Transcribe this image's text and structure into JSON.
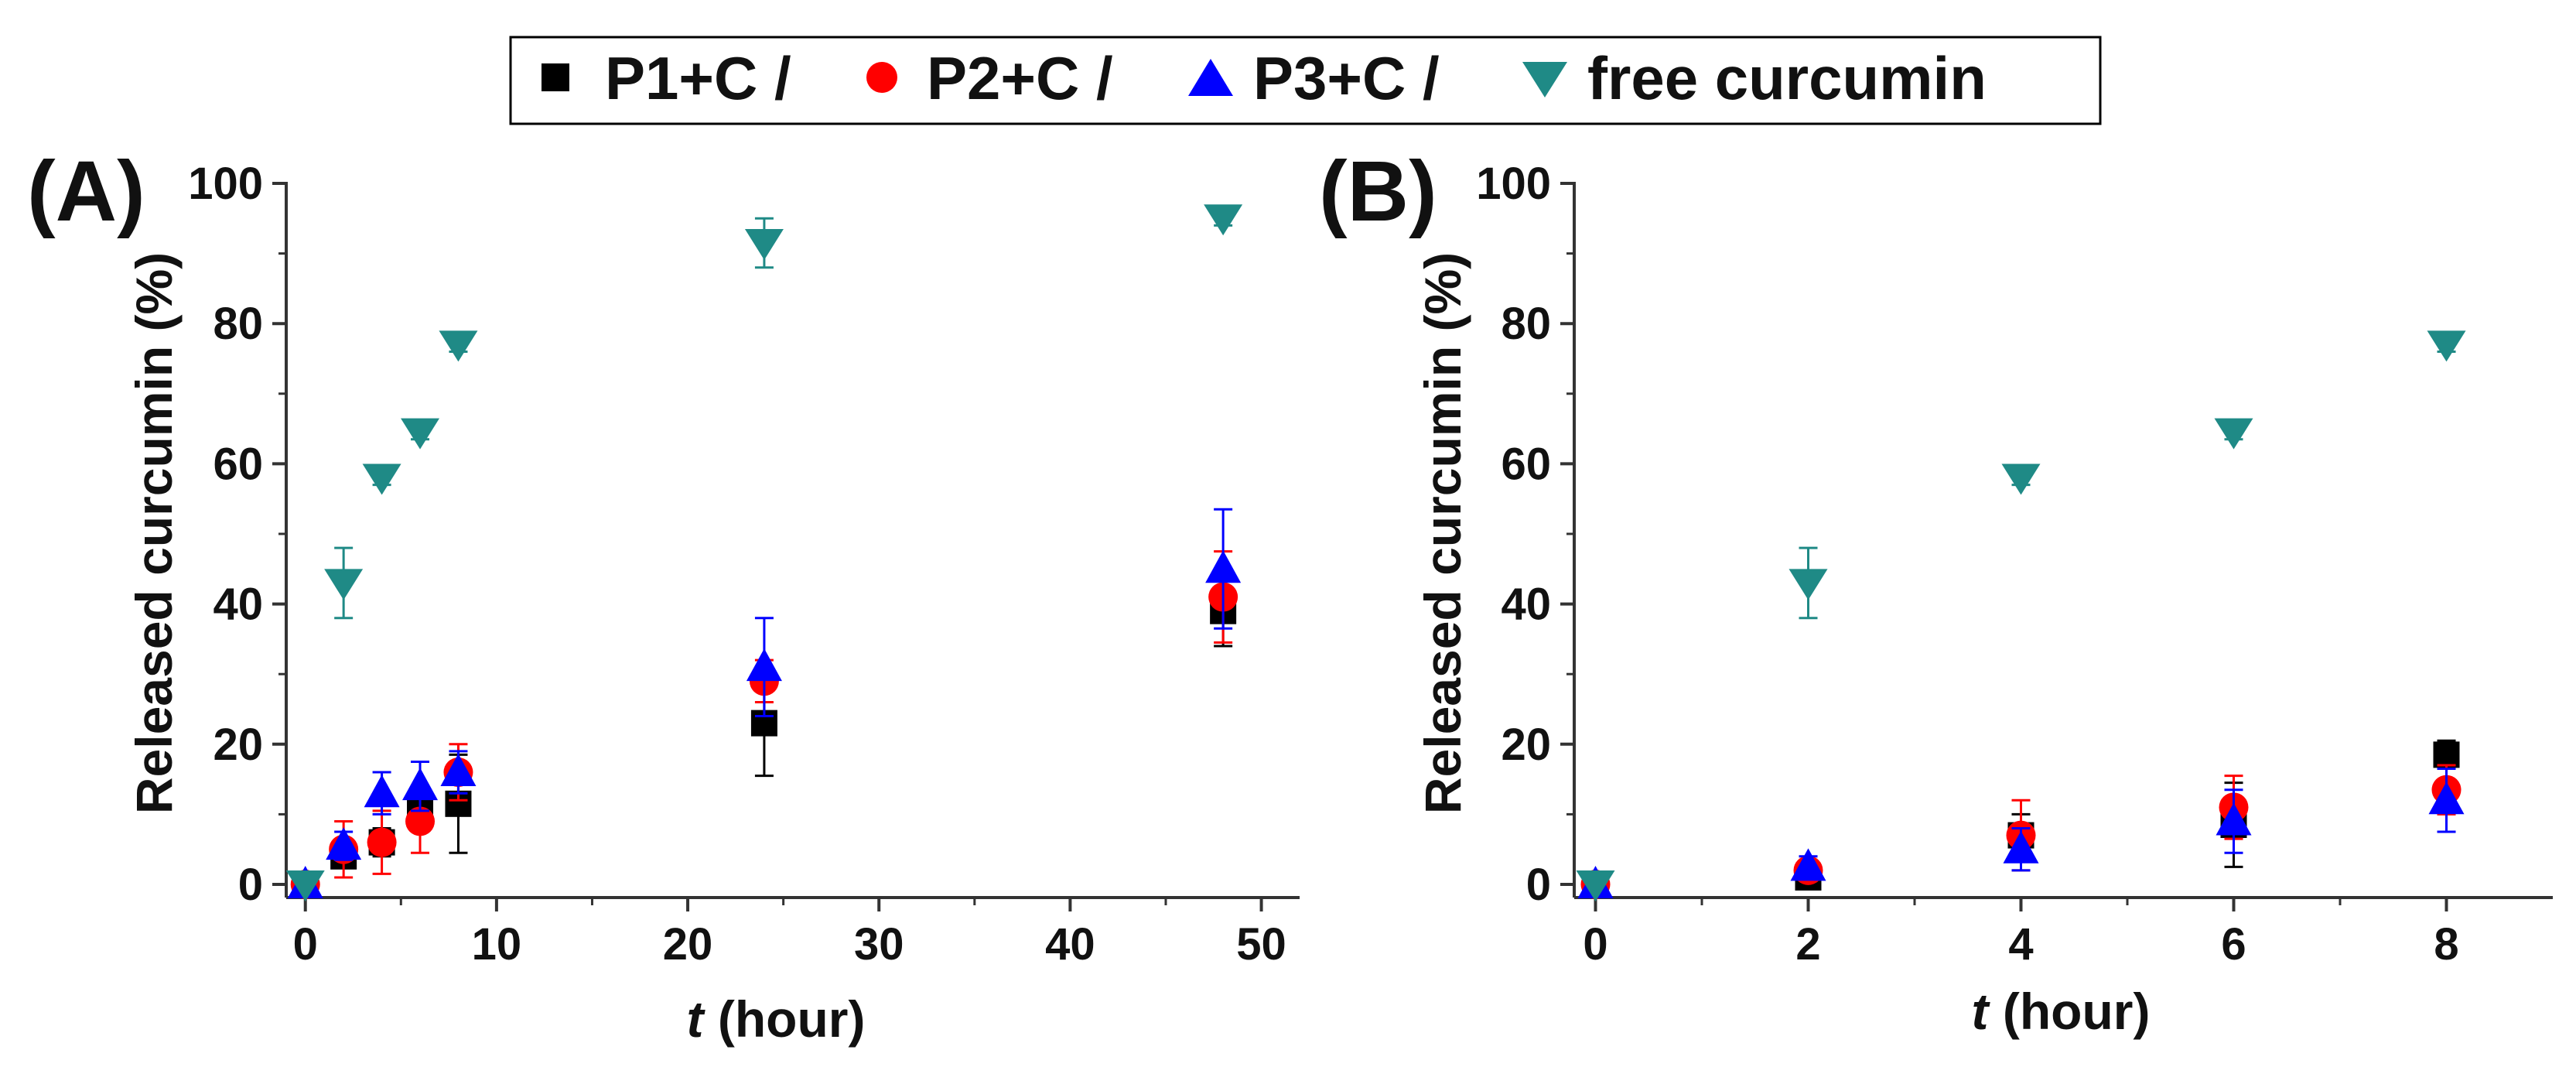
{
  "legend": {
    "entries": [
      {
        "label": "P1+C /",
        "color": "#000000",
        "marker": "square"
      },
      {
        "label": "P2+C /",
        "color": "#ff0000",
        "marker": "circle"
      },
      {
        "label": "P3+C /",
        "color": "#0000ff",
        "marker": "triangle-up"
      },
      {
        "label": "free curcumin",
        "color": "#1f8a86",
        "marker": "triangle-down"
      }
    ]
  },
  "chart_data": [
    {
      "type": "scatter",
      "panel_label": "(A)",
      "title": "",
      "xlabel_italic": "t",
      "xlabel_rest": " (hour)",
      "ylabel": "Released curcumin (%)",
      "xlim": [
        -1,
        52
      ],
      "ylim": [
        -2,
        100
      ],
      "xticks": [
        0,
        10,
        20,
        30,
        40,
        50
      ],
      "yticks": [
        0,
        20,
        40,
        60,
        80,
        100
      ],
      "series": [
        {
          "name": "P1+C",
          "x": [
            0,
            2,
            4,
            6,
            8,
            24,
            48
          ],
          "y": [
            0,
            4,
            6,
            11,
            11.5,
            23,
            39
          ],
          "err": [
            0.5,
            1.5,
            2,
            3,
            7,
            7.5,
            5
          ]
        },
        {
          "name": "P2+C",
          "x": [
            0,
            2,
            4,
            6,
            8,
            24,
            48
          ],
          "y": [
            0,
            5,
            6,
            9,
            16,
            29,
            41
          ],
          "err": [
            0.5,
            4,
            4.5,
            4.5,
            4,
            3,
            6.5
          ]
        },
        {
          "name": "P3+C",
          "x": [
            0,
            2,
            4,
            6,
            8,
            24,
            48
          ],
          "y": [
            0,
            5.5,
            13,
            14,
            16,
            31,
            45
          ],
          "err": [
            0.5,
            2,
            3,
            3.5,
            3,
            7,
            8.5
          ]
        },
        {
          "name": "free curcumin",
          "x": [
            0,
            2,
            4,
            6,
            8,
            24,
            48
          ],
          "y": [
            0,
            43,
            58,
            64.5,
            77,
            91.5,
            95
          ],
          "err": [
            0.5,
            5,
            1,
            1,
            1,
            3.5,
            1
          ]
        }
      ]
    },
    {
      "type": "scatter",
      "panel_label": "(B)",
      "title": "",
      "xlabel_italic": "t",
      "xlabel_rest": " (hour)",
      "ylabel": "Released curcumin (%)",
      "xlim": [
        -0.2,
        9
      ],
      "ylim": [
        -2,
        100
      ],
      "xticks": [
        0,
        2,
        4,
        6,
        8
      ],
      "yticks": [
        0,
        20,
        40,
        60,
        80,
        100
      ],
      "series": [
        {
          "name": "P1+C",
          "x": [
            0,
            2,
            4,
            6,
            8
          ],
          "y": [
            0,
            1,
            7,
            8.5,
            18.5
          ],
          "err": [
            0.5,
            1,
            3,
            6,
            2
          ]
        },
        {
          "name": "P2+C",
          "x": [
            0,
            2,
            4,
            6,
            8
          ],
          "y": [
            0,
            2,
            7,
            11,
            13.5
          ],
          "err": [
            0.5,
            1.5,
            5,
            4.5,
            3.5
          ]
        },
        {
          "name": "P3+C",
          "x": [
            0,
            2,
            4,
            6,
            8
          ],
          "y": [
            0,
            2.5,
            5,
            9,
            12
          ],
          "err": [
            0.5,
            1.5,
            3,
            4.5,
            4.5
          ]
        },
        {
          "name": "free curcumin",
          "x": [
            0,
            2,
            4,
            6,
            8
          ],
          "y": [
            0,
            43,
            58,
            64.5,
            77
          ],
          "err": [
            0.5,
            5,
            1,
            1,
            1
          ]
        }
      ]
    }
  ]
}
